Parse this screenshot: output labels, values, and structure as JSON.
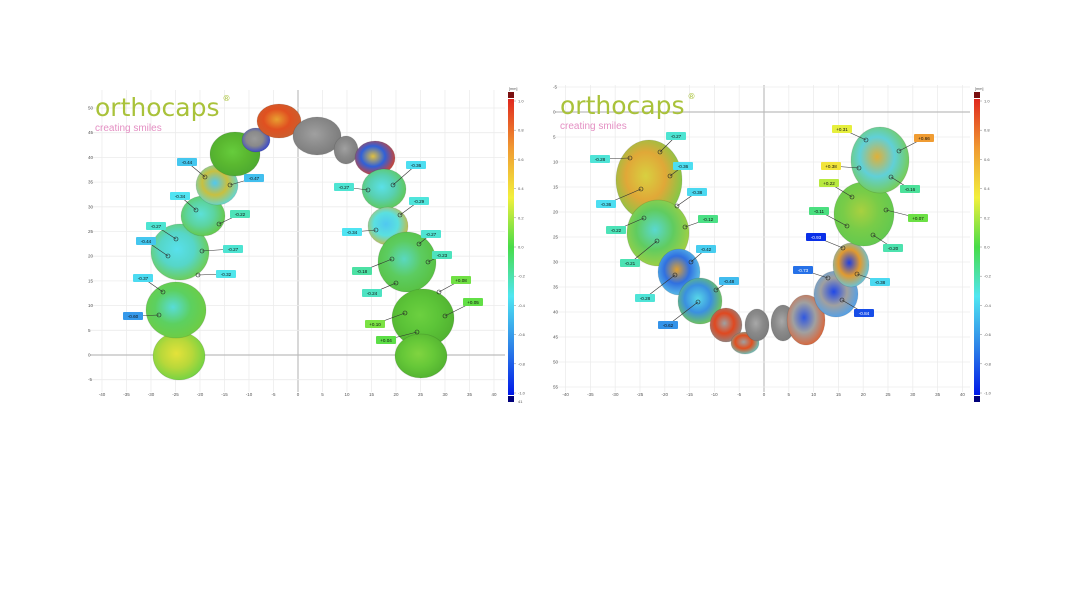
{
  "brand": {
    "word": "orthocaps",
    "registered": "®",
    "tagline": "creating smiles",
    "word_color": "#a9c23a",
    "tagline_color": "#e48fc3"
  },
  "colormap": {
    "stops": [
      "#00007a",
      "#0018e8",
      "#2f86e8",
      "#50e6f2",
      "#48dc48",
      "#f2f03c",
      "#f09a32",
      "#e0281e",
      "#7a1010"
    ],
    "gray_tooth": "#8f8f8f"
  },
  "panels": [
    {
      "name": "left-arch",
      "x_ticks": [
        "-40",
        "-35",
        "-30",
        "-25",
        "-20",
        "-15",
        "-10",
        "-5",
        "0",
        "5",
        "10",
        "15",
        "20",
        "25",
        "30",
        "35",
        "40"
      ],
      "y_ticks": [
        "50",
        "45",
        "40",
        "35",
        "30",
        "25",
        "20",
        "15",
        "10",
        "5",
        "0",
        "-5"
      ],
      "colorbar": {
        "unit": "[mm]",
        "ticks": [
          "1.0",
          "0.8",
          "0.6",
          "0.4",
          "0.2",
          "0.0",
          "-0.2",
          "-0.4",
          "-0.6",
          "-0.8",
          "-1.0"
        ],
        "extra": "41"
      },
      "labels": [
        "-0.44",
        "-0.47",
        "-0.34",
        "-0.22",
        "-0.27",
        "-0.44",
        "-0.27",
        "-0.32",
        "-0.37",
        "-0.60",
        "-0.36",
        "-0.27",
        "-0.29",
        "-0.34",
        "-0.27",
        "-0.23",
        "-0.18",
        "-0.24",
        "+0.08",
        "+0.05",
        "+0.10",
        "+0.04"
      ]
    },
    {
      "name": "right-arch",
      "x_ticks": [
        "-40",
        "-35",
        "-30",
        "-25",
        "-20",
        "-15",
        "-10",
        "-5",
        "0",
        "5",
        "10",
        "15",
        "20",
        "25",
        "30",
        "35",
        "40"
      ],
      "y_ticks": [
        "-5",
        "0",
        "5",
        "10",
        "15",
        "20",
        "25",
        "30",
        "35",
        "40",
        "45",
        "50",
        "55"
      ],
      "colorbar": {
        "unit": "[mm]",
        "ticks": [
          "1.0",
          "0.8",
          "0.6",
          "0.4",
          "0.2",
          "0.0",
          "-0.2",
          "-0.4",
          "-0.6",
          "-0.8",
          "-1.0"
        ]
      },
      "labels": [
        "-0.27",
        "-0.28",
        "-0.36",
        "-0.36",
        "-0.38",
        "-0.12",
        "-0.22",
        "-0.21",
        "-0.42",
        "-0.28",
        "-0.48",
        "-0.62",
        "+0.31",
        "+0.66",
        "+0.38",
        "-0.16",
        "+0.22",
        "-0.11",
        "+0.07",
        "-0.93",
        "-0.20",
        "-0.73",
        "-0.38",
        "-0.84"
      ]
    }
  ]
}
